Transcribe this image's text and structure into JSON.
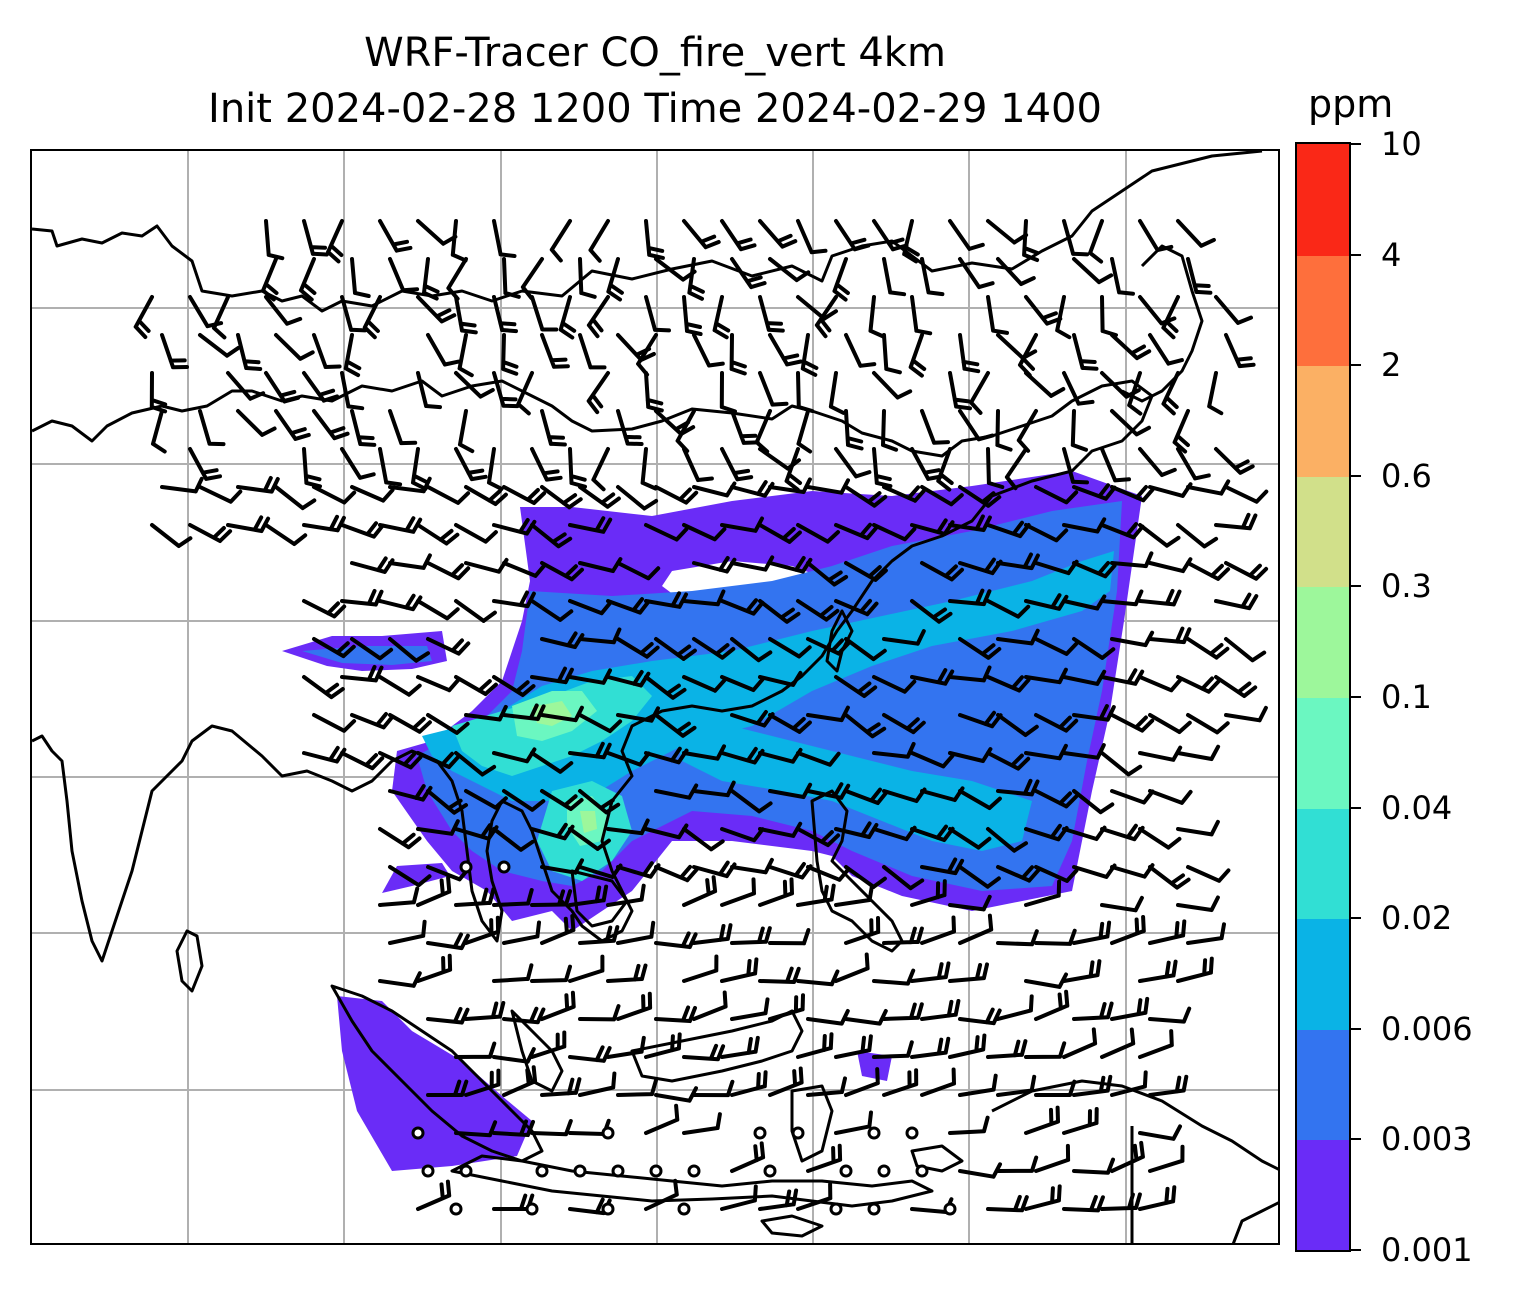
{
  "figure": {
    "title_line1": "WRF-Tracer CO_fire_vert 4km",
    "title_line2": "Init 2024-02-28 1200 Time 2024-02-29 1400"
  },
  "colorbar": {
    "unit": "ppm",
    "levels": [
      "0.001",
      "0.003",
      "0.006",
      "0.02",
      "0.04",
      "0.1",
      "0.3",
      "0.6",
      "2",
      "4",
      "10"
    ],
    "colors": [
      "#6a2cf7",
      "#3374f0",
      "#0ab3e6",
      "#31dfd4",
      "#6bf7c1",
      "#9df79b",
      "#d1e08a",
      "#fbb064",
      "#fe6f3c",
      "#fa2817"
    ]
  },
  "map": {
    "gridlines": true,
    "gridline_color": "#b0b0b0",
    "coastline_color": "#000000",
    "layers": [
      "coastlines-and-borders",
      "tracer-fill",
      "wind-barbs",
      "calm-wind-circles"
    ]
  }
}
